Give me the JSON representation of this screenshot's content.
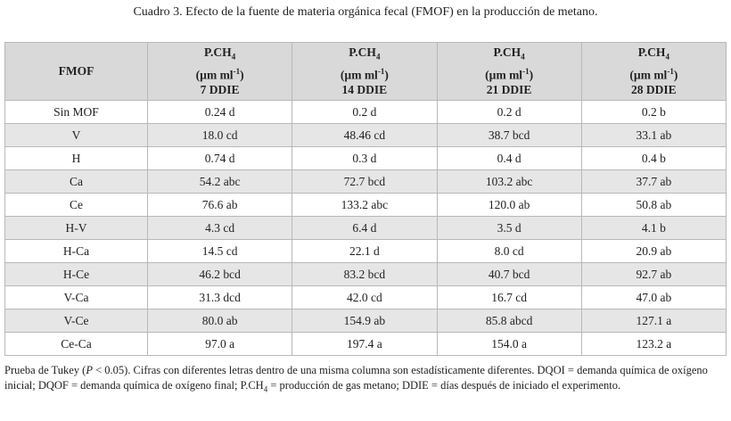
{
  "header": {
    "title": "Cuadro 3. Efecto de la fuente de materia orgánica fecal (FMOF) en la producción de metano."
  },
  "table": {
    "columns": [
      {
        "name": "FMOF"
      },
      {
        "name": "P.CH",
        "name_sub": "4",
        "unit": "(µm ml",
        "unit_sup": "-1",
        "unit_end": ")",
        "day": "7 DDIE"
      },
      {
        "name": "P.CH",
        "name_sub": "4",
        "unit": "(µm ml",
        "unit_sup": "-1",
        "unit_end": ")",
        "day": "14 DDIE"
      },
      {
        "name": "P.CH",
        "name_sub": "4",
        "unit": "(µm ml",
        "unit_sup": "-1",
        "unit_end": ")",
        "day": "21 DDIE"
      },
      {
        "name": "P.CH",
        "name_sub": "4",
        "unit": "(µm ml",
        "unit_sup": "-1",
        "unit_end": ")",
        "day": "28 DDIE"
      }
    ],
    "rows": [
      [
        "Sin MOF",
        "0.24 d",
        "0.2 d",
        "0.2 d",
        "0.2 b"
      ],
      [
        "V",
        "18.0 cd",
        "48.46 cd",
        "38.7 bcd",
        "33.1 ab"
      ],
      [
        "H",
        "0.74 d",
        "0.3 d",
        "0.4 d",
        "0.4 b"
      ],
      [
        "Ca",
        "54.2 abc",
        "72.7 bcd",
        "103.2 abc",
        "37.7 ab"
      ],
      [
        "Ce",
        "76.6 ab",
        "133.2 abc",
        "120.0 ab",
        "50.8 ab"
      ],
      [
        "H-V",
        "4.3 cd",
        "6.4 d",
        "3.5 d",
        "4.1 b"
      ],
      [
        "H-Ca",
        "14.5 cd",
        "22.1 d",
        "8.0 cd",
        "20.9 ab"
      ],
      [
        "H-Ce",
        "46.2 bcd",
        "83.2 bcd",
        "40.7 bcd",
        "92.7 ab"
      ],
      [
        "V-Ca",
        "31.3 dcd",
        "42.0 cd",
        "16.7 cd",
        "47.0 ab"
      ],
      [
        "V-Ce",
        "80.0 ab",
        "154.9 ab",
        "85.8 abcd",
        "127.1 a"
      ],
      [
        "Ce-Ca",
        "97.0 a",
        "197.4 a",
        "154.0 a",
        "123.2 a"
      ]
    ]
  },
  "footnote": [
    {
      "text": "Prueba de Tukey ("
    },
    {
      "text": "P",
      "italic": true
    },
    {
      "text": " < 0.05). Cifras con diferentes letras dentro de una misma columna son estadísticamente diferentes. DQOI = demanda química de oxígeno inicial; DQOF = demanda química de oxígeno final; P.CH"
    },
    {
      "text": "4",
      "sub": true
    },
    {
      "text": " = producción de gas metano; DDIE = días después de iniciado el experimento."
    }
  ]
}
